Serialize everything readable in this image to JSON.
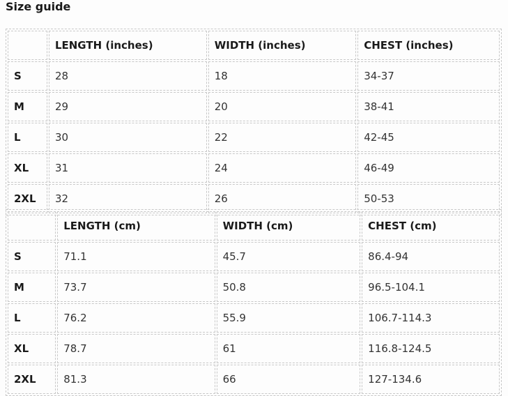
{
  "title": "Size guide",
  "inches": {
    "headers": [
      "",
      "LENGTH (inches)",
      "WIDTH (inches)",
      "CHEST (inches)"
    ],
    "rows": [
      [
        "S",
        "28",
        "18",
        "34-37"
      ],
      [
        "M",
        "29",
        "20",
        "38-41"
      ],
      [
        "L",
        "30",
        "22",
        "42-45"
      ],
      [
        "XL",
        "31",
        "24",
        "46-49"
      ],
      [
        "2XL",
        "32",
        "26",
        "50-53"
      ]
    ]
  },
  "cm": {
    "headers": [
      "",
      "LENGTH (cm)",
      "WIDTH (cm)",
      "CHEST (cm)"
    ],
    "rows": [
      [
        "S",
        "71.1",
        "45.7",
        "86.4-94"
      ],
      [
        "M",
        "73.7",
        "50.8",
        "96.5-104.1"
      ],
      [
        "L",
        "76.2",
        "55.9",
        "106.7-114.3"
      ],
      [
        "XL",
        "78.7",
        "61",
        "116.8-124.5"
      ],
      [
        "2XL",
        "81.3",
        "66",
        "127-134.6"
      ]
    ]
  }
}
